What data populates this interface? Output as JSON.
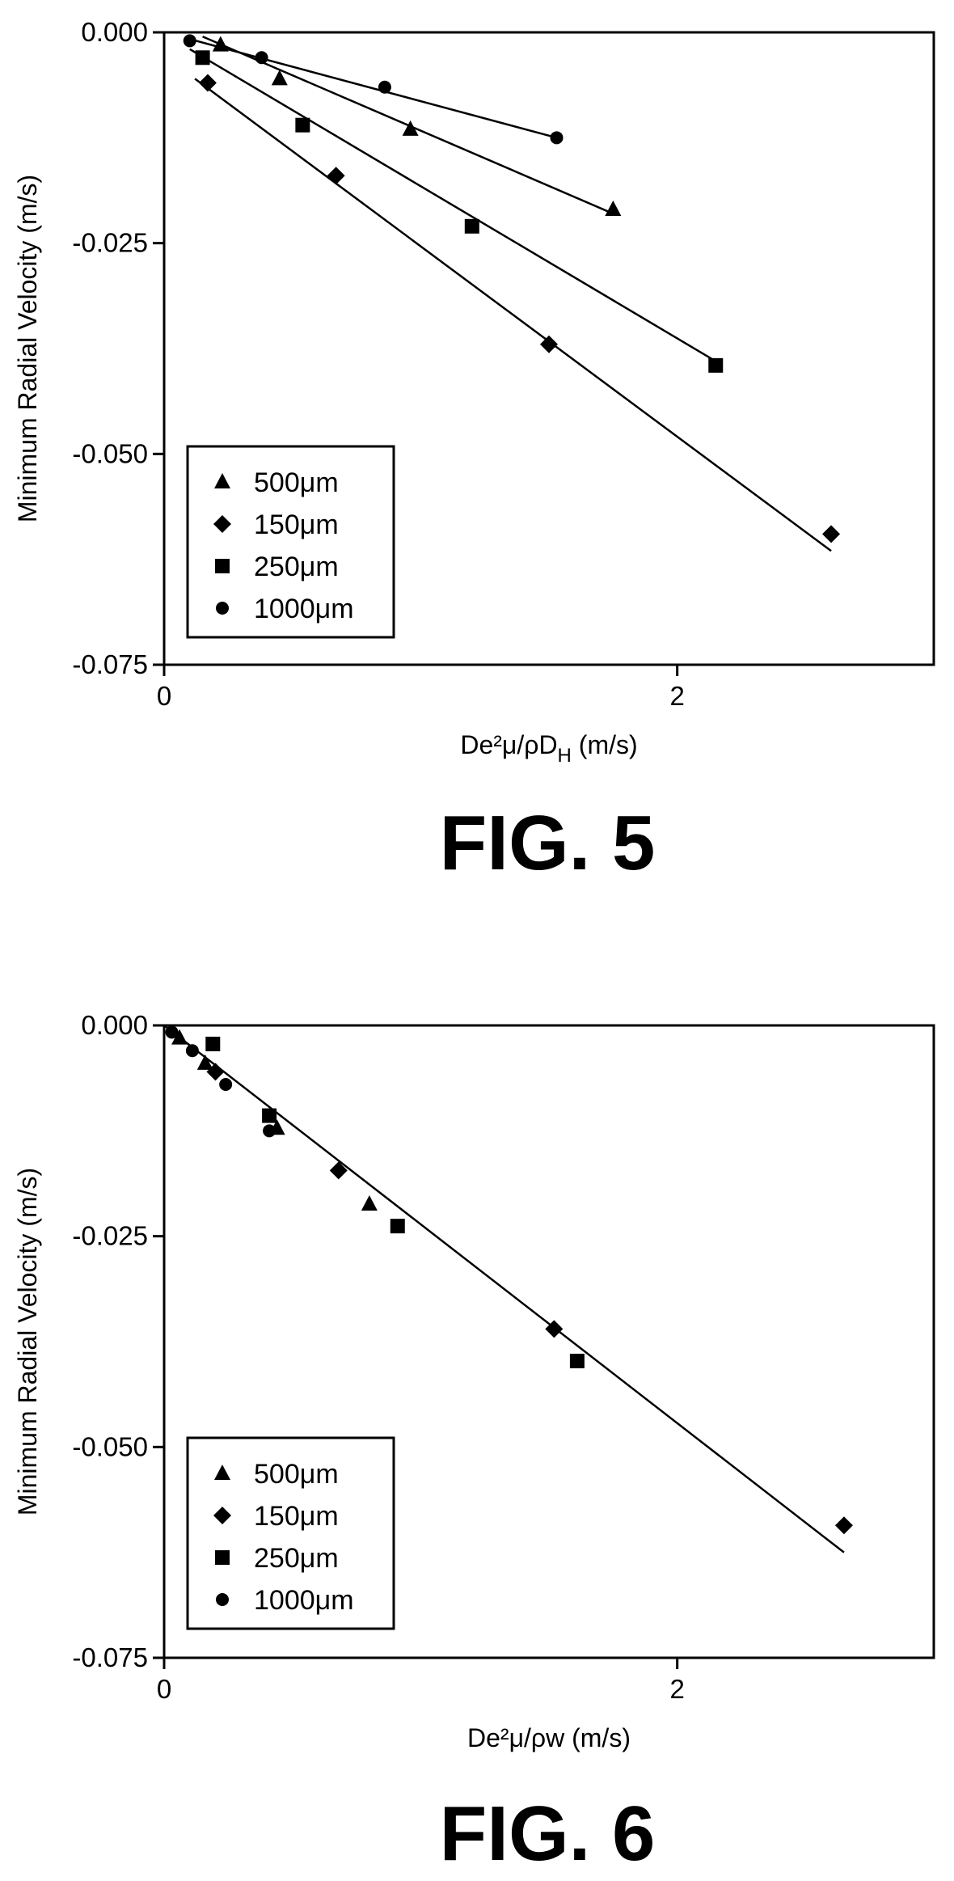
{
  "chart_data": [
    {
      "type": "scatter",
      "caption": "FIG. 5",
      "xlabel": "De²μ/ρD",
      "xlabel_sub": "H",
      "xlabel_suffix": " (m/s)",
      "ylabel": "Minimum Radial Velocity (m/s)",
      "xlim": [
        0,
        3.0
      ],
      "ylim": [
        -0.075,
        0.0
      ],
      "xticks": [
        0,
        2
      ],
      "xtick_labels": [
        "0",
        "2"
      ],
      "yticks": [
        0.0,
        -0.025,
        -0.05,
        -0.075
      ],
      "ytick_labels": [
        "0.000",
        "-0.025",
        "-0.050",
        "-0.075"
      ],
      "legend_position": "bottom-left",
      "grid": false,
      "series": [
        {
          "name": "500μm",
          "marker": "triangle",
          "x": [
            0.22,
            0.45,
            0.96,
            1.75
          ],
          "y": [
            -0.0015,
            -0.0055,
            -0.0115,
            -0.021
          ],
          "fit": {
            "x": [
              0.15,
              1.75
            ],
            "y": [
              -0.0005,
              -0.0215
            ]
          }
        },
        {
          "name": "150μm",
          "marker": "diamond",
          "x": [
            0.17,
            0.67,
            1.5,
            2.6
          ],
          "y": [
            -0.006,
            -0.017,
            -0.037,
            -0.0595
          ],
          "fit": {
            "x": [
              0.12,
              2.6
            ],
            "y": [
              -0.0055,
              -0.0615
            ]
          }
        },
        {
          "name": "250μm",
          "marker": "square",
          "x": [
            0.15,
            0.54,
            1.2,
            2.15
          ],
          "y": [
            -0.003,
            -0.011,
            -0.023,
            -0.0395
          ],
          "fit": {
            "x": [
              0.1,
              2.15
            ],
            "y": [
              -0.002,
              -0.039
            ]
          }
        },
        {
          "name": "1000μm",
          "marker": "circle",
          "x": [
            0.1,
            0.38,
            0.86,
            1.53
          ],
          "y": [
            -0.001,
            -0.003,
            -0.0065,
            -0.0125
          ],
          "fit": {
            "x": [
              0.1,
              1.53
            ],
            "y": [
              -0.0008,
              -0.0125
            ]
          }
        }
      ]
    },
    {
      "type": "scatter",
      "caption": "FIG. 6",
      "xlabel": "De²μ/ρw",
      "xlabel_sub": "",
      "xlabel_suffix": " (m/s)",
      "ylabel": "Minimum Radial Velocity (m/s)",
      "xlim": [
        0,
        3.0
      ],
      "ylim": [
        -0.075,
        0.0
      ],
      "xticks": [
        0,
        2
      ],
      "xtick_labels": [
        "0",
        "2"
      ],
      "yticks": [
        0.0,
        -0.025,
        -0.05,
        -0.075
      ],
      "ytick_labels": [
        "0.000",
        "-0.025",
        "-0.050",
        "-0.075"
      ],
      "legend_position": "bottom-left",
      "grid": false,
      "series": [
        {
          "name": "500μm",
          "marker": "triangle",
          "x": [
            0.06,
            0.16,
            0.44,
            0.8
          ],
          "y": [
            -0.0015,
            -0.0045,
            -0.0122,
            -0.0212
          ],
          "fit": null
        },
        {
          "name": "150μm",
          "marker": "diamond",
          "x": [
            0.2,
            0.68,
            1.52,
            2.65
          ],
          "y": [
            -0.0055,
            -0.0172,
            -0.036,
            -0.0593
          ],
          "fit": null
        },
        {
          "name": "250μm",
          "marker": "square",
          "x": [
            0.19,
            0.41,
            0.91,
            1.61
          ],
          "y": [
            -0.0022,
            -0.0107,
            -0.0238,
            -0.0398
          ],
          "fit": null
        },
        {
          "name": "1000μm",
          "marker": "circle",
          "x": [
            0.03,
            0.11,
            0.24,
            0.41
          ],
          "y": [
            -0.0008,
            -0.003,
            -0.007,
            -0.0125
          ],
          "fit": null
        }
      ],
      "overall_fit": {
        "x": [
          0.0,
          2.65
        ],
        "y": [
          0.0,
          -0.0625
        ]
      }
    }
  ],
  "icons": [
    "triangle-marker-icon",
    "diamond-marker-icon",
    "square-marker-icon",
    "circle-marker-icon"
  ]
}
